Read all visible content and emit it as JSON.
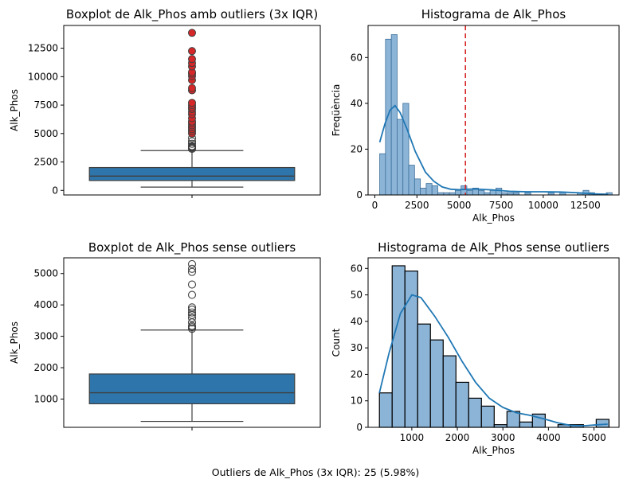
{
  "caption": "Outliers de Alk_Phos (3x IQR): 25 (5.98%)",
  "colors": {
    "box": "#2e75ab",
    "hist_fill": "#8cb4d7",
    "hist_fill_outline": "#3d6f9a",
    "kde": "#1f77b4",
    "outlier": "#d62728",
    "threshold": "#d62728"
  },
  "chart_data": [
    {
      "type": "boxplot",
      "title": "Boxplot de Alk_Phos amb outliers (3x IQR)",
      "xlabel": "",
      "ylabel": "Alk_Phos",
      "ylim": [
        -400,
        14500
      ],
      "yticks": [
        0,
        2500,
        5000,
        7500,
        10000,
        12500
      ],
      "stats": {
        "min": 289,
        "q1": 870,
        "median": 1259,
        "q3": 2010,
        "whisker_high": 3500
      },
      "fliers_normal": [
        3650,
        3720,
        3780,
        3830,
        3860,
        3900,
        4100,
        4320,
        4600
      ],
      "fliers_outlier": [
        5000,
        5200,
        5380,
        5550,
        5720,
        5900,
        6050,
        6350,
        6700,
        6900,
        7150,
        7300,
        7500,
        7700,
        8800,
        9000,
        9700,
        10050,
        10250,
        10400,
        10900,
        11200,
        11550,
        12250,
        13850
      ]
    },
    {
      "type": "histogram",
      "title": "Histograma de Alk_Phos",
      "xlabel": "Alk_Phos",
      "ylabel": "Freqüència",
      "xlim": [
        -400,
        14500
      ],
      "ylim": [
        0,
        74
      ],
      "xticks": [
        0,
        2500,
        5000,
        7500,
        10000,
        12500
      ],
      "yticks": [
        0,
        20,
        40,
        60
      ],
      "bin_start": 289,
      "bin_width": 345,
      "counts": [
        18,
        68,
        70,
        33,
        40,
        13,
        7,
        3,
        5,
        4,
        1,
        1,
        1,
        2,
        4,
        2,
        3,
        2,
        1,
        2,
        3,
        1,
        1,
        1,
        0,
        1,
        0,
        0,
        0,
        1,
        0,
        1,
        0,
        0,
        1,
        2,
        1,
        0,
        0,
        1
      ],
      "kde": [
        [
          289,
          23
        ],
        [
          600,
          31
        ],
        [
          900,
          37
        ],
        [
          1200,
          39
        ],
        [
          1500,
          36
        ],
        [
          1900,
          29
        ],
        [
          2400,
          19
        ],
        [
          3000,
          10
        ],
        [
          3500,
          6
        ],
        [
          4000,
          3.5
        ],
        [
          4500,
          2.5
        ],
        [
          5000,
          2.3
        ],
        [
          5500,
          2.5
        ],
        [
          6000,
          2.6
        ],
        [
          6500,
          2.4
        ],
        [
          7000,
          2.2
        ],
        [
          7500,
          1.9
        ],
        [
          8000,
          1.6
        ],
        [
          9000,
          1.4
        ],
        [
          10000,
          1.4
        ],
        [
          11000,
          1.3
        ],
        [
          12000,
          1
        ],
        [
          13000,
          0.5
        ],
        [
          13850,
          0.3
        ]
      ],
      "threshold": 5380
    },
    {
      "type": "boxplot",
      "title": "Boxplot de Alk_Phos sense outliers",
      "xlabel": "",
      "ylabel": "Alk_Phos",
      "ylim": [
        100,
        5500
      ],
      "yticks": [
        1000,
        2000,
        3000,
        4000,
        5000
      ],
      "stats": {
        "min": 289,
        "q1": 850,
        "median": 1200,
        "q3": 1800,
        "whisker_high": 3200
      },
      "fliers_normal": [
        3240,
        3290,
        3330,
        3440,
        3580,
        3680,
        3760,
        3850,
        3920,
        4320,
        4650,
        5050,
        5150,
        5300
      ]
    },
    {
      "type": "histogram",
      "title": "Histograma de Alk_Phos sense outliers",
      "xlabel": "Alk_Phos",
      "ylabel": "Count",
      "xlim": [
        40,
        5550
      ],
      "ylim": [
        0,
        64
      ],
      "xticks": [
        1000,
        2000,
        3000,
        4000,
        5000
      ],
      "yticks": [
        0,
        10,
        20,
        30,
        40,
        50,
        60
      ],
      "bin_start": 289,
      "bin_width": 280,
      "counts": [
        13,
        61,
        59,
        39,
        33,
        27,
        17,
        11,
        8,
        1,
        6,
        2,
        5,
        0,
        1,
        1,
        0,
        3
      ],
      "kde": [
        [
          289,
          13
        ],
        [
          500,
          28
        ],
        [
          750,
          43
        ],
        [
          1000,
          50
        ],
        [
          1200,
          49
        ],
        [
          1500,
          42
        ],
        [
          1800,
          34
        ],
        [
          2100,
          25
        ],
        [
          2400,
          17
        ],
        [
          2700,
          11
        ],
        [
          3000,
          7.5
        ],
        [
          3300,
          5.5
        ],
        [
          3600,
          4.5
        ],
        [
          3900,
          3.2
        ],
        [
          4200,
          1.7
        ],
        [
          4500,
          0.7
        ],
        [
          4800,
          0.6
        ],
        [
          5100,
          1
        ],
        [
          5300,
          1.2
        ]
      ]
    }
  ]
}
